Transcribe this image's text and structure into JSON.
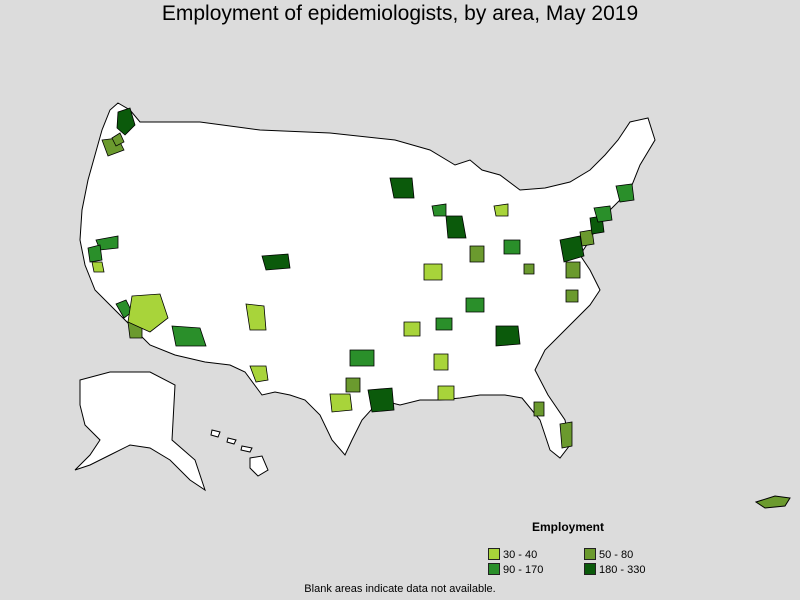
{
  "title": "Employment of epidemiologists, by area, May 2019",
  "legend": {
    "title": "Employment",
    "items": [
      {
        "label": "30 - 40",
        "color": "#a8d43a"
      },
      {
        "label": "50 - 80",
        "color": "#6b9a2e"
      },
      {
        "label": "90 - 170",
        "color": "#2a8f2a"
      },
      {
        "label": "180 - 330",
        "color": "#0b5a0b"
      }
    ]
  },
  "footnote": "Blank areas indicate data not available.",
  "colors": {
    "background": "#dcdcdc",
    "land": "#ffffff",
    "border": "#000000"
  }
}
